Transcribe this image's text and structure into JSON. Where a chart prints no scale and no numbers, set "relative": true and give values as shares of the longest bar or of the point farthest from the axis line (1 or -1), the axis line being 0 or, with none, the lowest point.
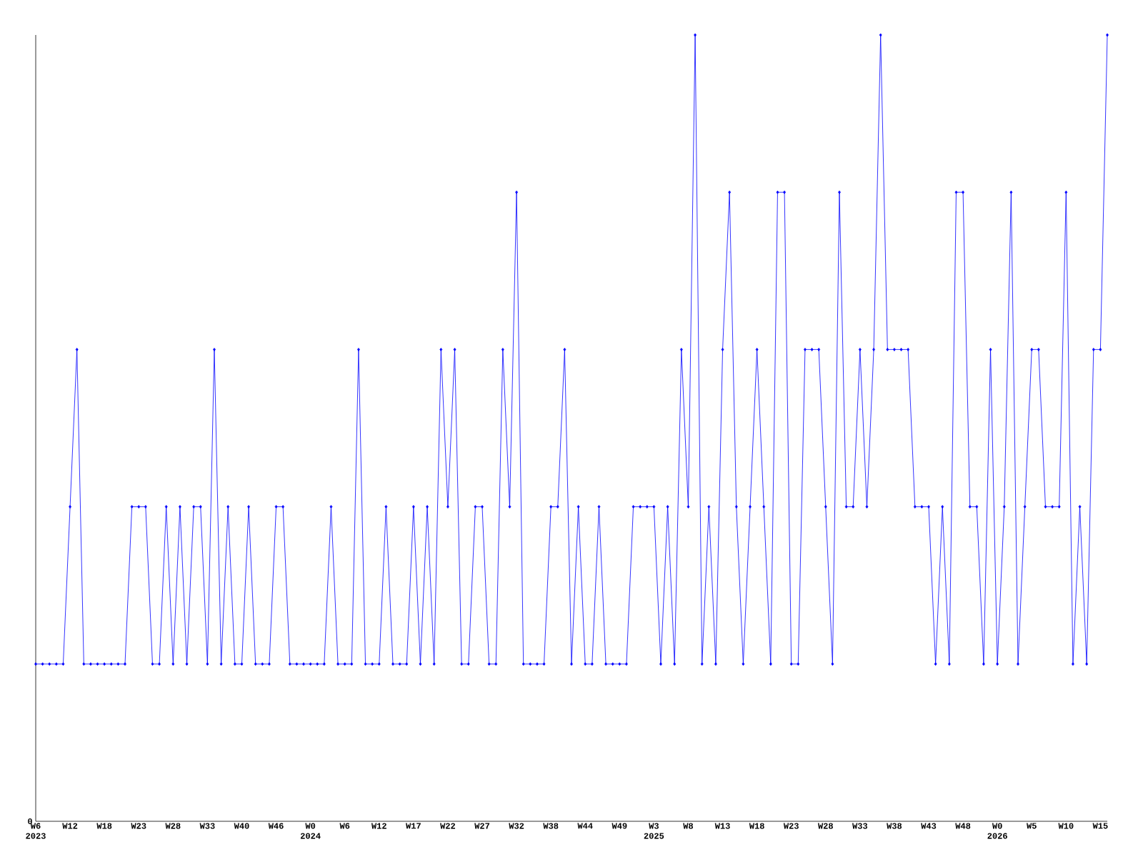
{
  "chart_data": {
    "type": "line",
    "relative": true,
    "color": "#0000ff",
    "marker": "diamond",
    "line_style": "solid",
    "categories": [
      "W6 2023",
      null,
      null,
      null,
      null,
      "W12",
      null,
      null,
      null,
      null,
      "W18",
      null,
      null,
      null,
      null,
      "W23",
      null,
      null,
      null,
      null,
      "W28",
      null,
      null,
      null,
      null,
      "W33",
      null,
      null,
      null,
      null,
      "W40",
      null,
      null,
      null,
      null,
      "W46",
      null,
      null,
      null,
      null,
      "W0 2024",
      null,
      null,
      null,
      null,
      "W6",
      null,
      null,
      null,
      null,
      "W12",
      null,
      null,
      null,
      null,
      "W17",
      null,
      null,
      null,
      null,
      "W22",
      null,
      null,
      null,
      null,
      "W27",
      null,
      null,
      null,
      null,
      "W32",
      null,
      null,
      null,
      null,
      "W38",
      null,
      null,
      null,
      null,
      "W44",
      null,
      null,
      null,
      null,
      "W49",
      null,
      null,
      null,
      null,
      "W3 2025",
      null,
      null,
      null,
      null,
      "W8",
      null,
      null,
      null,
      null,
      "W13",
      null,
      null,
      null,
      null,
      "W18",
      null,
      null,
      null,
      null,
      "W23",
      null,
      null,
      null,
      null,
      "W28",
      null,
      null,
      null,
      null,
      "W33",
      null,
      null,
      null,
      null,
      "W38",
      null,
      null,
      null,
      null,
      "W43",
      null,
      null,
      null,
      null,
      "W48",
      null,
      null,
      null,
      null,
      "W0 2026",
      null,
      null,
      null,
      null,
      "W5",
      null,
      null,
      null,
      null,
      "W10",
      null,
      null,
      null,
      null,
      "W15",
      null
    ],
    "values": [
      0.2,
      0.2,
      0.2,
      0.2,
      0.2,
      0.4,
      0.6,
      0.2,
      0.2,
      0.2,
      0.2,
      0.2,
      0.2,
      0.2,
      0.4,
      0.4,
      0.4,
      0.2,
      0.2,
      0.4,
      0.2,
      0.4,
      0.2,
      0.4,
      0.4,
      0.2,
      0.6,
      0.2,
      0.4,
      0.2,
      0.2,
      0.4,
      0.2,
      0.2,
      0.2,
      0.4,
      0.4,
      0.2,
      0.2,
      0.2,
      0.2,
      0.2,
      0.2,
      0.4,
      0.2,
      0.2,
      0.2,
      0.6,
      0.2,
      0.2,
      0.2,
      0.4,
      0.2,
      0.2,
      0.2,
      0.4,
      0.2,
      0.4,
      0.2,
      0.6,
      0.4,
      0.6,
      0.2,
      0.2,
      0.4,
      0.4,
      0.2,
      0.2,
      0.6,
      0.4,
      0.8,
      0.2,
      0.2,
      0.2,
      0.2,
      0.4,
      0.4,
      0.6,
      0.2,
      0.4,
      0.2,
      0.2,
      0.4,
      0.2,
      0.2,
      0.2,
      0.2,
      0.4,
      0.4,
      0.4,
      0.4,
      0.2,
      0.4,
      0.2,
      0.6,
      0.4,
      1,
      0.2,
      0.4,
      0.2,
      0.6,
      0.8,
      0.4,
      0.2,
      0.4,
      0.6,
      0.4,
      0.2,
      0.8,
      0.8,
      0.2,
      0.2,
      0.6,
      0.6,
      0.6,
      0.4,
      0.2,
      0.8,
      0.4,
      0.4,
      0.6,
      0.4,
      0.6,
      1,
      0.6,
      0.6,
      0.6,
      0.6,
      0.4,
      0.4,
      0.4,
      0.2,
      0.4,
      0.2,
      0.8,
      0.8,
      0.4,
      0.4,
      0.2,
      0.6,
      0.2,
      0.4,
      0.8,
      0.2,
      0.4,
      0.6,
      0.6,
      0.4,
      0.4,
      0.4,
      0.8,
      0.2,
      0.4,
      0.2,
      0.6,
      0.6,
      1
    ],
    "annotations": [
      "0"
    ]
  }
}
